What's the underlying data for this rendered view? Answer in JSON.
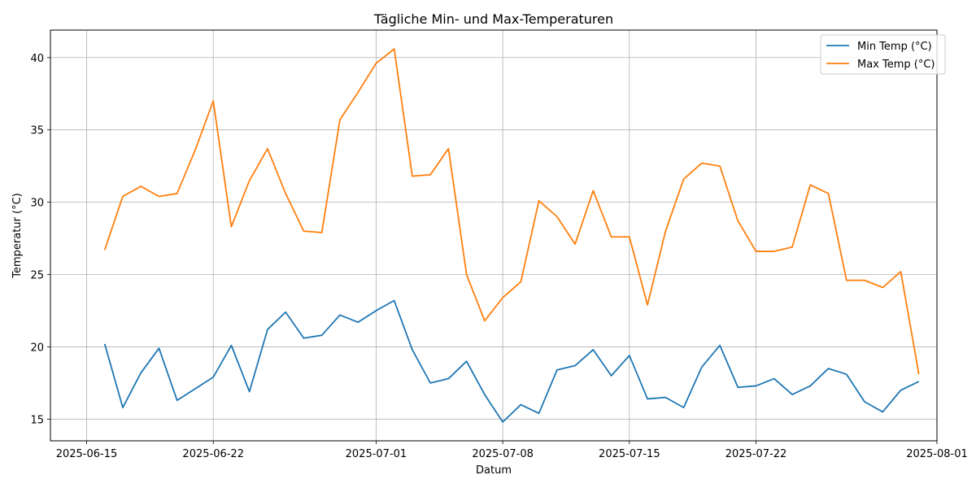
{
  "chart_data": {
    "type": "line",
    "title": "Tägliche Min- und Max-Temperaturen",
    "xlabel": "Datum",
    "ylabel": "Temperatur (°C)",
    "x_range": [
      "2025-06-13",
      "2025-08-01"
    ],
    "ylim": [
      13.5,
      41.9
    ],
    "grid": true,
    "legend_position": "top-right",
    "x_ticks": [
      "2025-06-15",
      "2025-06-22",
      "2025-07-01",
      "2025-07-08",
      "2025-07-15",
      "2025-07-22",
      "2025-08-01"
    ],
    "y_ticks": [
      15,
      20,
      25,
      30,
      35,
      40
    ],
    "x": [
      "2025-06-16",
      "2025-06-17",
      "2025-06-18",
      "2025-06-19",
      "2025-06-20",
      "2025-06-21",
      "2025-06-22",
      "2025-06-23",
      "2025-06-24",
      "2025-06-25",
      "2025-06-26",
      "2025-06-27",
      "2025-06-28",
      "2025-06-29",
      "2025-06-30",
      "2025-07-01",
      "2025-07-02",
      "2025-07-03",
      "2025-07-04",
      "2025-07-05",
      "2025-07-06",
      "2025-07-07",
      "2025-07-08",
      "2025-07-09",
      "2025-07-10",
      "2025-07-11",
      "2025-07-12",
      "2025-07-13",
      "2025-07-14",
      "2025-07-15",
      "2025-07-16",
      "2025-07-17",
      "2025-07-18",
      "2025-07-19",
      "2025-07-20",
      "2025-07-21",
      "2025-07-22",
      "2025-07-23",
      "2025-07-24",
      "2025-07-25",
      "2025-07-26",
      "2025-07-27",
      "2025-07-28",
      "2025-07-29",
      "2025-07-30",
      "2025-07-31"
    ],
    "series": [
      {
        "name": "Min Temp (°C)",
        "color": "#1f77b4",
        "values": [
          20.2,
          15.8,
          18.2,
          19.9,
          16.3,
          17.1,
          17.9,
          20.1,
          16.9,
          21.2,
          22.4,
          20.6,
          20.8,
          22.2,
          21.7,
          22.5,
          23.2,
          19.8,
          17.5,
          17.8,
          19.0,
          16.7,
          14.8,
          16.0,
          15.4,
          18.4,
          18.7,
          19.8,
          18.0,
          19.4,
          16.4,
          16.5,
          15.8,
          18.6,
          20.1,
          17.2,
          17.3,
          17.8,
          16.7,
          17.3,
          18.5,
          18.1,
          16.2,
          15.5,
          17.0,
          17.6
        ]
      },
      {
        "name": "Max Temp (°C)",
        "color": "#ff7f0e",
        "values": [
          26.7,
          30.4,
          31.1,
          30.4,
          30.6,
          33.6,
          37.0,
          28.3,
          31.5,
          33.7,
          30.6,
          28.0,
          27.9,
          35.7,
          37.6,
          39.6,
          40.6,
          31.8,
          31.9,
          33.7,
          25.0,
          21.8,
          23.4,
          24.5,
          30.1,
          29.0,
          27.1,
          30.8,
          27.6,
          27.6,
          22.9,
          28.0,
          31.6,
          32.7,
          32.5,
          28.7,
          26.6,
          26.6,
          26.9,
          31.2,
          30.6,
          24.6,
          24.6,
          24.1,
          25.2,
          18.1
        ]
      }
    ]
  }
}
